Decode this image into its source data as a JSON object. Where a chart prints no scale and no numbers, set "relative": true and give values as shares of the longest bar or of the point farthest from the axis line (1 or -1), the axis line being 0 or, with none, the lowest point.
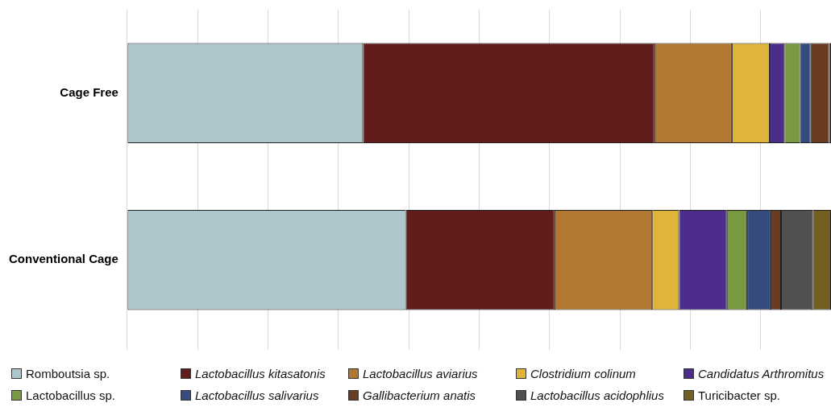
{
  "chart_data": {
    "type": "bar",
    "orientation": "horizontal",
    "stacked": true,
    "relative": true,
    "grid": "x",
    "legend": "bottom",
    "categories": [
      "Cage Free",
      "Conventional Cage"
    ],
    "series": [
      {
        "name": "Romboutsia sp.",
        "color": "#adc6cb",
        "values": [
          0.335,
          0.396
        ]
      },
      {
        "name": "Lactobacillus kitasatonis",
        "color": "#621c1b",
        "values": [
          0.414,
          0.211
        ]
      },
      {
        "name": "Lactobacillus aviarius",
        "color": "#b27733",
        "values": [
          0.11,
          0.139
        ]
      },
      {
        "name": "Clostridium colinum",
        "color": "#deb43a",
        "values": [
          0.054,
          0.038
        ]
      },
      {
        "name": "Candidatus Arthromitus",
        "color": "#4c2d8b",
        "values": [
          0.021,
          0.068
        ]
      },
      {
        "name": "Lactobacillus sp.",
        "color": "#789841",
        "values": [
          0.022,
          0.029
        ]
      },
      {
        "name": "Lactobacillus salivarius",
        "color": "#364b7d",
        "values": [
          0.015,
          0.033
        ]
      },
      {
        "name": "Gallibacterium anatis",
        "color": "#6a3c20",
        "values": [
          0.026,
          0.015
        ]
      },
      {
        "name": "Lactobacillus acidophlius",
        "color": "#505050",
        "values": [
          0.003,
          0.045
        ]
      },
      {
        "name": "Turicibacter sp.",
        "color": "#735f22",
        "values": [
          0,
          0.026
        ]
      }
    ]
  }
}
